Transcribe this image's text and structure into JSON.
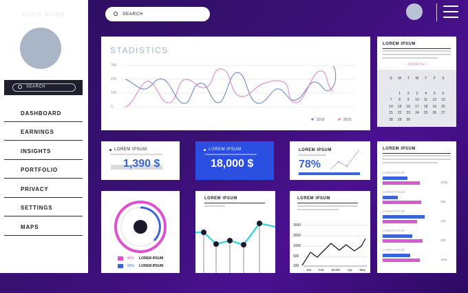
{
  "sidebar": {
    "user_name": "USER NAME",
    "search_label": "SEARCH",
    "items": [
      {
        "label": "DASHBOARD"
      },
      {
        "label": "EARNINGS"
      },
      {
        "label": "INSIGHTS"
      },
      {
        "label": "PORTFOLIO"
      },
      {
        "label": "PRIVACY"
      },
      {
        "label": "SETTINGS"
      },
      {
        "label": "MAPS"
      }
    ]
  },
  "topbar": {
    "search_label": "SEARCH"
  },
  "statistics": {
    "title": "STADISTICS",
    "y_ticks": [
      "300",
      "200",
      "100",
      "0"
    ],
    "legend": [
      "2018",
      "2019"
    ],
    "colors": {
      "s2018": "#5b7fd1",
      "s2019": "#e27ac7"
    }
  },
  "calendar": {
    "title": "LOREM IPSUM",
    "month_label": "‹ MONTH ›",
    "weekdays": [
      "S",
      "M",
      "T",
      "W",
      "T",
      "F",
      "S"
    ],
    "days": [
      [
        "",
        "",
        "",
        "",
        "",
        "",
        ""
      ],
      [
        "",
        "1",
        "2",
        "3",
        "4",
        "5",
        "6"
      ],
      [
        "7",
        "8",
        "9",
        "10",
        "11",
        "12",
        "13"
      ],
      [
        "14",
        "15",
        "16",
        "17",
        "18",
        "19",
        "20"
      ],
      [
        "21",
        "22",
        "23",
        "24",
        "25",
        "26",
        "27"
      ],
      [
        "28",
        "29",
        "30",
        "",
        "",
        "",
        ""
      ]
    ]
  },
  "kpi1": {
    "label": "LOREM IPSUM",
    "value": "1,390 $"
  },
  "kpi2": {
    "label": "LOREM IPSUM",
    "value": "18,000 $"
  },
  "kpi3": {
    "label": "LOREM IPSUM",
    "value": "78%"
  },
  "bars_card": {
    "title": "LOREM IPSUM",
    "rows": [
      {
        "label": "LOREM IPSUM",
        "value": "1200",
        "blue": 0.5,
        "pink": 0.75
      },
      {
        "label": "LOREM IPSUM",
        "value": "350",
        "blue": 0.3,
        "pink": 0.78
      },
      {
        "label": "LOREM IPSUM",
        "value": "120",
        "blue": 0.85,
        "pink": 0.7
      },
      {
        "label": "LOREM IPSUM",
        "value": "200",
        "blue": 0.6,
        "pink": 0.8
      },
      {
        "label": "LOREM IPSUM",
        "value": "1150",
        "blue": 0.55,
        "pink": 0.75
      }
    ],
    "colors": {
      "blue": "#3b63d8",
      "pink": "#d75ad0"
    }
  },
  "donut": {
    "legend": [
      {
        "pct": "40%",
        "label": "LOREM IPSUM",
        "color": "#e04fd1"
      },
      {
        "pct": "60%",
        "label": "LOREM IPSUM",
        "color": "#3b63d8"
      }
    ]
  },
  "lollipop": {
    "title": "LOREM IPSUM",
    "accent": "#40d3e0"
  },
  "linecard": {
    "title": "LOREM IPSUM",
    "y_ticks": [
      "3000",
      "2000",
      "1000",
      "500",
      "100"
    ],
    "x_ticks": [
      "Jan",
      "Feb",
      "Month",
      "Apr",
      "May"
    ]
  }
}
